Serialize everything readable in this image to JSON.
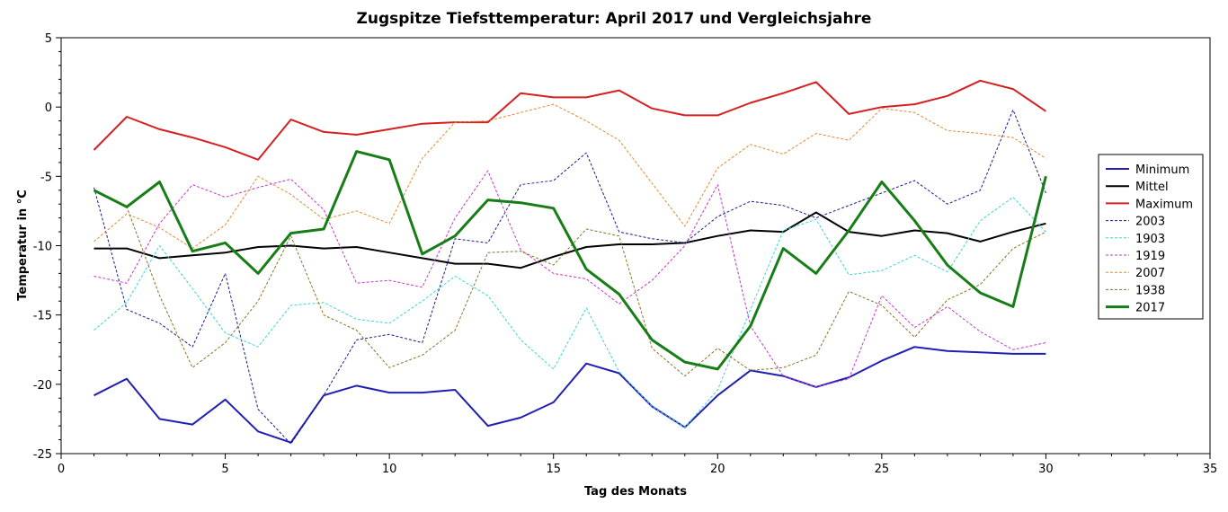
{
  "chart_data": {
    "type": "line",
    "title": "Zugspitze Tiefsttemperatur: April 2017 und Vergleichsjahre",
    "xlabel": "Tag des Monats",
    "ylabel": "Temperatur in °C",
    "xlim": [
      0,
      35
    ],
    "ylim": [
      -25,
      5
    ],
    "xticks": [
      0,
      5,
      10,
      15,
      20,
      25,
      30,
      35
    ],
    "yticks": [
      -25,
      -20,
      -15,
      -10,
      -5,
      0,
      5
    ],
    "x_minor_step": 1,
    "y_minor_step": 1,
    "grid": false,
    "legend_position": "right",
    "x": [
      1,
      2,
      3,
      4,
      5,
      6,
      7,
      8,
      9,
      10,
      11,
      12,
      13,
      14,
      15,
      16,
      17,
      18,
      19,
      20,
      21,
      22,
      23,
      24,
      25,
      26,
      27,
      28,
      29,
      30
    ],
    "series": [
      {
        "name": "Minimum",
        "color": "#1f1fb4",
        "style": "solid",
        "width": 2,
        "values": [
          -20.8,
          -19.6,
          -22.5,
          -22.9,
          -21.1,
          -23.4,
          -24.2,
          -20.8,
          -20.1,
          -20.6,
          -20.6,
          -20.4,
          -23.0,
          -22.4,
          -21.3,
          -18.5,
          -19.2,
          -21.6,
          -23.1,
          -20.8,
          -19.0,
          -19.4,
          -20.2,
          -19.5,
          -18.3,
          -17.3,
          -17.6,
          -17.7,
          -17.8,
          -17.8
        ]
      },
      {
        "name": "Mittel",
        "color": "#000000",
        "style": "solid",
        "width": 2,
        "values": [
          -10.2,
          -10.2,
          -10.9,
          -10.7,
          -10.5,
          -10.1,
          -10.0,
          -10.2,
          -10.1,
          -10.5,
          -10.9,
          -11.3,
          -11.3,
          -11.6,
          -10.8,
          -10.1,
          -9.9,
          -9.9,
          -9.8,
          -9.3,
          -8.9,
          -9.0,
          -7.6,
          -9.0,
          -9.3,
          -8.9,
          -9.1,
          -9.7,
          -9.0,
          -8.4
        ]
      },
      {
        "name": "Maximum",
        "color": "#d42020",
        "style": "solid",
        "width": 2,
        "values": [
          -3.1,
          -0.7,
          -1.6,
          -2.2,
          -2.9,
          -3.8,
          -0.9,
          -1.8,
          -2.0,
          -1.6,
          -1.2,
          -1.1,
          -1.1,
          1.0,
          0.7,
          0.7,
          1.2,
          -0.1,
          -0.6,
          -0.6,
          0.3,
          1.0,
          1.8,
          -0.5,
          0.0,
          0.2,
          0.8,
          1.9,
          1.3,
          -0.3
        ]
      },
      {
        "name": "2003",
        "color": "#1a1a8c",
        "style": "dashed",
        "width": 1,
        "values": [
          -5.8,
          -14.6,
          -15.6,
          -17.3,
          -12.0,
          -21.8,
          -24.3,
          -20.8,
          -16.8,
          -16.4,
          -17.0,
          -9.5,
          -9.8,
          -5.6,
          -5.3,
          -3.3,
          -9.0,
          -9.5,
          -9.8,
          -7.9,
          -6.8,
          -7.1,
          -8.0,
          -7.1,
          -6.2,
          -5.3,
          -7.0,
          -6.0,
          -0.2,
          -6.2
        ]
      },
      {
        "name": "1903",
        "color": "#3cd6d6",
        "style": "dashed",
        "width": 1,
        "values": [
          -16.1,
          -14.1,
          -10.0,
          -13.1,
          -16.3,
          -17.3,
          -14.3,
          -14.1,
          -15.3,
          -15.6,
          -14.0,
          -12.2,
          -13.6,
          -16.8,
          -18.9,
          -14.5,
          -19.1,
          -21.6,
          -23.1,
          -20.4,
          -14.6,
          -8.9,
          -8.1,
          -12.1,
          -11.8,
          -10.7,
          -11.9,
          -8.2,
          -6.5,
          -9.0
        ]
      },
      {
        "name": "1919",
        "color": "#cc33cc",
        "style": "dashed",
        "width": 1,
        "values": [
          -12.2,
          -12.7,
          -8.4,
          -5.6,
          -6.5,
          -5.8,
          -5.2,
          -7.4,
          -12.7,
          -12.5,
          -13.0,
          -8.0,
          -4.6,
          -10.3,
          -12.0,
          -12.4,
          -14.2,
          -12.5,
          -10.0,
          -5.6,
          -15.8,
          -19.4,
          -20.2,
          -19.6,
          -13.6,
          -15.9,
          -14.4,
          -16.2,
          -17.5,
          -17.0
        ]
      },
      {
        "name": "2007",
        "color": "#e08a33",
        "style": "dashed",
        "width": 1,
        "values": [
          -9.7,
          -7.7,
          -8.7,
          -10.2,
          -8.5,
          -5.0,
          -6.3,
          -8.1,
          -7.5,
          -8.4,
          -3.7,
          -1.1,
          -1.0,
          -0.4,
          0.2,
          -1.0,
          -2.4,
          -5.5,
          -8.6,
          -4.4,
          -2.7,
          -3.4,
          -1.9,
          -2.4,
          -0.1,
          -0.4,
          -1.7,
          -1.9,
          -2.2,
          -3.7
        ]
      },
      {
        "name": "1938",
        "color": "#8a7326",
        "style": "dashed",
        "width": 1,
        "values": [
          -6.0,
          -7.2,
          -13.6,
          -18.8,
          -17.0,
          -14.0,
          -9.3,
          -15.0,
          -16.1,
          -18.8,
          -17.9,
          -16.1,
          -10.5,
          -10.4,
          -11.4,
          -8.8,
          -9.3,
          -17.4,
          -19.4,
          -17.4,
          -19.0,
          -18.8,
          -17.9,
          -13.3,
          -14.3,
          -16.6,
          -13.9,
          -12.8,
          -10.2,
          -9.0
        ]
      },
      {
        "name": "2017",
        "color": "#177d17",
        "style": "solid",
        "width": 3,
        "values": [
          -6.0,
          -7.2,
          -5.4,
          -10.4,
          -9.8,
          -12.0,
          -9.1,
          -8.8,
          -3.2,
          -3.8,
          -10.6,
          -9.3,
          -6.7,
          -6.9,
          -7.3,
          -11.7,
          -13.5,
          -16.8,
          -18.4,
          -18.9,
          -15.8,
          -10.2,
          -12.0,
          -8.9,
          -5.4,
          -8.2,
          -11.4,
          -13.4,
          -14.4,
          -5.0
        ]
      }
    ]
  }
}
